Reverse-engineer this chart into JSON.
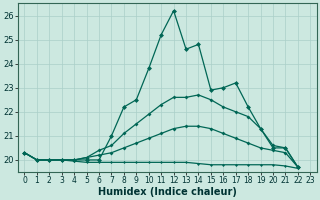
{
  "xlabel": "Humidex (Indice chaleur)",
  "bg_color": "#cce8e0",
  "grid_color": "#aacfc8",
  "line_color": "#006655",
  "xlim": [
    -0.5,
    23.5
  ],
  "ylim": [
    19.5,
    26.5
  ],
  "yticks": [
    20,
    21,
    22,
    23,
    24,
    25,
    26
  ],
  "xticks": [
    0,
    1,
    2,
    3,
    4,
    5,
    6,
    7,
    8,
    9,
    10,
    11,
    12,
    13,
    14,
    15,
    16,
    17,
    18,
    19,
    20,
    21,
    22,
    23
  ],
  "series": [
    [
      20.3,
      20.0,
      20.0,
      20.0,
      20.0,
      20.0,
      20.0,
      21.0,
      22.2,
      22.5,
      23.8,
      25.2,
      26.2,
      24.6,
      24.8,
      22.9,
      23.0,
      23.2,
      22.2,
      21.3,
      20.5,
      20.5,
      19.7
    ],
    [
      20.3,
      20.0,
      20.0,
      20.0,
      20.0,
      20.1,
      20.4,
      20.6,
      21.1,
      21.5,
      21.9,
      22.3,
      22.6,
      22.6,
      22.7,
      22.5,
      22.2,
      22.0,
      21.8,
      21.3,
      20.6,
      20.5,
      19.7
    ],
    [
      20.3,
      20.0,
      20.0,
      20.0,
      20.0,
      20.1,
      20.2,
      20.3,
      20.5,
      20.7,
      20.9,
      21.1,
      21.3,
      21.4,
      21.4,
      21.3,
      21.1,
      20.9,
      20.7,
      20.5,
      20.4,
      20.3,
      19.7
    ],
    [
      20.3,
      20.0,
      20.0,
      20.0,
      19.95,
      19.9,
      19.9,
      19.9,
      19.9,
      19.9,
      19.9,
      19.9,
      19.9,
      19.9,
      19.85,
      19.8,
      19.8,
      19.8,
      19.8,
      19.8,
      19.8,
      19.75,
      19.65
    ]
  ],
  "xlabel_fontsize": 7,
  "tick_fontsize": 5.5,
  "ytick_fontsize": 6
}
